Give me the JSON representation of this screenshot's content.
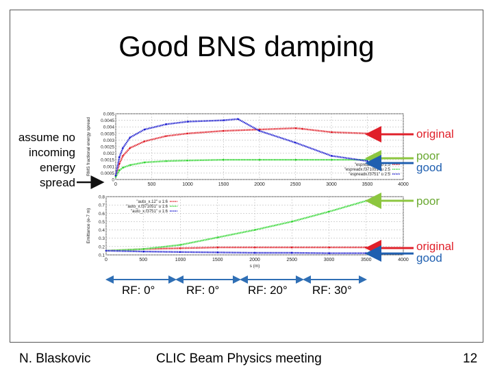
{
  "slide": {
    "title": "Good BNS damping",
    "side_note": [
      "assume no",
      "incoming",
      "energy",
      "spread"
    ],
    "annotations": {
      "top_original": "original",
      "top_poor": "poor",
      "top_good": "good",
      "bottom_poor": "poor",
      "bottom_original": "original",
      "bottom_good": "good"
    },
    "rf_labels": [
      "RF: 0°",
      "RF: 0°",
      "RF: 20°",
      "RF: 30°"
    ],
    "footer": {
      "author": "N. Blaskovic",
      "meeting": "CLIC Beam Physics meeting",
      "page": "12"
    },
    "colors": {
      "original": "#e0202a",
      "poor": "#8cc63f",
      "good": "#1f5fb0",
      "arrow_black": "#111111",
      "rf_arrow": "#2f6fb5"
    }
  },
  "chart_data": [
    {
      "type": "line",
      "title": "",
      "xlabel": "",
      "ylabel": "RMS fractional energy spread",
      "xlim": [
        0,
        4000
      ],
      "ylim": [
        0,
        0.005
      ],
      "xticks": [
        "0",
        "500",
        "1000",
        "1500",
        "2000",
        "2500",
        "3000",
        "3500",
        "4000"
      ],
      "yticks": [
        "0",
        "0.0005",
        "0.001",
        "0.0015",
        "0.002",
        "0.0025",
        "0.003",
        "0.0035",
        "0.004",
        "0.0045",
        "0.005"
      ],
      "grid": true,
      "legend_position": "bottom-right",
      "series": [
        {
          "name": "\"espreadx.12\" u 2:5",
          "color": "#e0202a",
          "x": [
            0,
            50,
            100,
            200,
            400,
            700,
            1000,
            1500,
            2000,
            2500,
            2600,
            3000,
            3500
          ],
          "y": [
            0.0003,
            0.0012,
            0.0018,
            0.0024,
            0.0029,
            0.0033,
            0.0035,
            0.0037,
            0.0038,
            0.0039,
            0.00385,
            0.0036,
            0.0035
          ]
        },
        {
          "name": "\"espreadx.f371051\" u 2:5",
          "color": "#35d635",
          "x": [
            0,
            50,
            100,
            200,
            400,
            700,
            1000,
            1500,
            2000,
            2500,
            3000,
            3500
          ],
          "y": [
            0.0002,
            0.0007,
            0.0009,
            0.0011,
            0.0013,
            0.0014,
            0.00145,
            0.0015,
            0.0015,
            0.0015,
            0.0015,
            0.0015
          ]
        },
        {
          "name": "\"espreadx.f3751\" u 2:5",
          "color": "#2020d0",
          "x": [
            0,
            50,
            100,
            200,
            400,
            700,
            1000,
            1500,
            1700,
            2000,
            2500,
            3000,
            3500
          ],
          "y": [
            0.0003,
            0.0017,
            0.0024,
            0.0032,
            0.0038,
            0.0042,
            0.0044,
            0.0045,
            0.0046,
            0.0037,
            0.0028,
            0.0018,
            0.0014
          ]
        }
      ]
    },
    {
      "type": "line",
      "title": "",
      "xlabel": "s (m)",
      "ylabel": "Emittance (e-7 m)",
      "xlim": [
        0,
        4000
      ],
      "ylim": [
        0.1,
        0.8
      ],
      "xticks": [
        "0",
        "500",
        "1000",
        "1500",
        "2000",
        "2500",
        "3000",
        "3500",
        "4000"
      ],
      "yticks": [
        "0.1",
        "0.2",
        "0.3",
        "0.4",
        "0.5",
        "0.6",
        "0.7",
        "0.8"
      ],
      "grid": true,
      "legend_position": "top-left",
      "series": [
        {
          "name": "\"auto_x.12\" u 1:6",
          "color": "#e0202a",
          "x": [
            0,
            500,
            1000,
            1500,
            2000,
            2500,
            3000,
            3500
          ],
          "y": [
            0.15,
            0.17,
            0.18,
            0.19,
            0.19,
            0.19,
            0.19,
            0.19
          ]
        },
        {
          "name": "\"auto_x.f371051\" u 1:6",
          "color": "#35d635",
          "x": [
            0,
            500,
            1000,
            1500,
            2000,
            2500,
            3000,
            3500
          ],
          "y": [
            0.15,
            0.17,
            0.22,
            0.31,
            0.4,
            0.5,
            0.62,
            0.75
          ]
        },
        {
          "name": "\"auto_x.f3751\" u 1:6",
          "color": "#2020d0",
          "x": [
            0,
            500,
            1000,
            1500,
            2000,
            2500,
            3000,
            3500
          ],
          "y": [
            0.15,
            0.14,
            0.135,
            0.13,
            0.125,
            0.125,
            0.12,
            0.12
          ]
        }
      ]
    }
  ]
}
